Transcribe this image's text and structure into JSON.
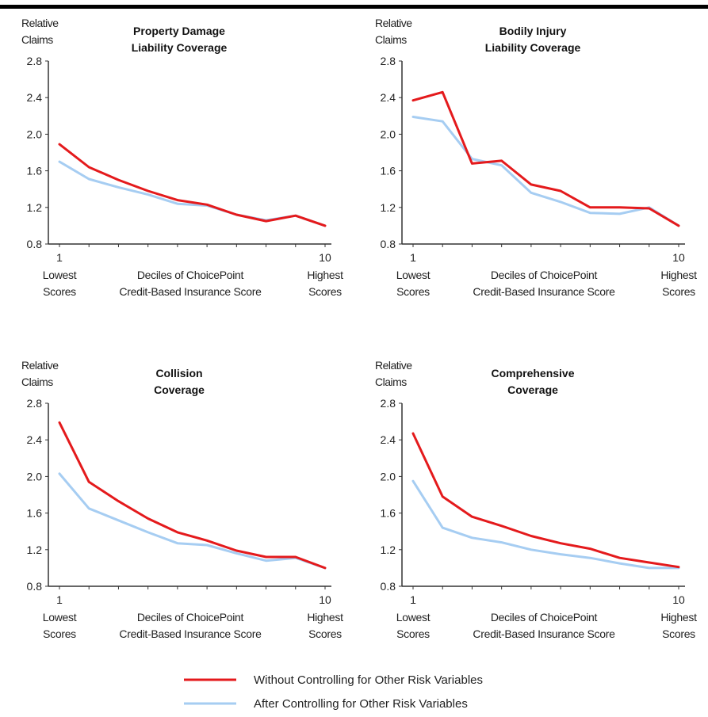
{
  "colors": {
    "without": "#e41a1c",
    "after": "#a6cdf2",
    "axis": "#333333"
  },
  "legend": {
    "without": "Without Controlling for Other Risk Variables",
    "after": "After Controlling for Other Risk Variables"
  },
  "chart_data": [
    {
      "type": "line",
      "title": [
        "Property Damage",
        "Liability Coverage"
      ],
      "ylabel": [
        "Relative",
        "Claims"
      ],
      "xlabel": [
        "Deciles of ChoicePoint",
        "Credit-Based Insurance Score"
      ],
      "x_low_label": [
        "Lowest",
        "Scores"
      ],
      "x_high_label": [
        "Highest",
        "Scores"
      ],
      "x_ticks": [
        "1",
        "10"
      ],
      "y_ticks": [
        "2.8",
        "2.4",
        "2.0",
        "1.6",
        "1.2",
        "0.8"
      ],
      "ylim": [
        0.8,
        2.8
      ],
      "x": [
        1,
        2,
        3,
        4,
        5,
        6,
        7,
        8,
        9,
        10
      ],
      "series": [
        {
          "name": "Without Controlling for Other Risk Variables",
          "values": [
            1.89,
            1.64,
            1.5,
            1.38,
            1.28,
            1.23,
            1.12,
            1.05,
            1.11,
            1.0
          ]
        },
        {
          "name": "After Controlling for Other Risk Variables",
          "values": [
            1.7,
            1.51,
            1.42,
            1.34,
            1.24,
            1.22,
            1.12,
            1.06,
            1.11,
            1.0
          ]
        }
      ]
    },
    {
      "type": "line",
      "title": [
        "Bodily Injury",
        "Liability Coverage"
      ],
      "ylabel": [
        "Relative",
        "Claims"
      ],
      "xlabel": [
        "Deciles of ChoicePoint",
        "Credit-Based Insurance Score"
      ],
      "x_low_label": [
        "Lowest",
        "Scores"
      ],
      "x_high_label": [
        "Highest",
        "Scores"
      ],
      "x_ticks": [
        "1",
        "10"
      ],
      "y_ticks": [
        "2.8",
        "2.4",
        "2.0",
        "1.6",
        "1.2",
        "0.8"
      ],
      "ylim": [
        0.8,
        2.8
      ],
      "x": [
        1,
        2,
        3,
        4,
        5,
        6,
        7,
        8,
        9,
        10
      ],
      "series": [
        {
          "name": "Without Controlling for Other Risk Variables",
          "values": [
            2.37,
            2.46,
            1.68,
            1.71,
            1.45,
            1.38,
            1.2,
            1.2,
            1.19,
            1.0
          ]
        },
        {
          "name": "After Controlling for Other Risk Variables",
          "values": [
            2.19,
            2.14,
            1.73,
            1.66,
            1.36,
            1.26,
            1.14,
            1.13,
            1.2,
            1.0
          ]
        }
      ]
    },
    {
      "type": "line",
      "title": [
        "Collision",
        "Coverage"
      ],
      "ylabel": [
        "Relative",
        "Claims"
      ],
      "xlabel": [
        "Deciles of ChoicePoint",
        "Credit-Based Insurance Score"
      ],
      "x_low_label": [
        "Lowest",
        "Scores"
      ],
      "x_high_label": [
        "Highest",
        "Scores"
      ],
      "x_ticks": [
        "1",
        "10"
      ],
      "y_ticks": [
        "2.8",
        "2.4",
        "2.0",
        "1.6",
        "1.2",
        "0.8"
      ],
      "ylim": [
        0.8,
        2.8
      ],
      "x": [
        1,
        2,
        3,
        4,
        5,
        6,
        7,
        8,
        9,
        10
      ],
      "series": [
        {
          "name": "Without Controlling for Other Risk Variables",
          "values": [
            2.59,
            1.94,
            1.73,
            1.54,
            1.39,
            1.3,
            1.19,
            1.12,
            1.12,
            1.0
          ]
        },
        {
          "name": "After Controlling for Other Risk Variables",
          "values": [
            2.03,
            1.65,
            1.52,
            1.39,
            1.27,
            1.25,
            1.16,
            1.08,
            1.11,
            1.0
          ]
        }
      ]
    },
    {
      "type": "line",
      "title": [
        "Comprehensive",
        "Coverage"
      ],
      "ylabel": [
        "Relative",
        "Claims"
      ],
      "xlabel": [
        "Deciles of ChoicePoint",
        "Credit-Based Insurance Score"
      ],
      "x_low_label": [
        "Lowest",
        "Scores"
      ],
      "x_high_label": [
        "Highest",
        "Scores"
      ],
      "x_ticks": [
        "1",
        "10"
      ],
      "y_ticks": [
        "2.8",
        "2.4",
        "2.0",
        "1.6",
        "1.2",
        "0.8"
      ],
      "ylim": [
        0.8,
        2.8
      ],
      "x": [
        1,
        2,
        3,
        4,
        5,
        6,
        7,
        8,
        9,
        10
      ],
      "series": [
        {
          "name": "Without Controlling for Other Risk Variables",
          "values": [
            2.47,
            1.78,
            1.56,
            1.46,
            1.35,
            1.27,
            1.21,
            1.11,
            1.06,
            1.01
          ]
        },
        {
          "name": "After Controlling for Other Risk Variables",
          "values": [
            1.95,
            1.44,
            1.33,
            1.28,
            1.2,
            1.15,
            1.11,
            1.05,
            1.0,
            1.0
          ]
        }
      ]
    }
  ]
}
